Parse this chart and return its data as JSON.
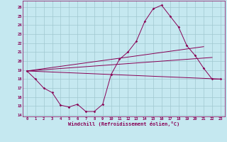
{
  "xlabel": "Windchill (Refroidissement éolien,°C)",
  "xlim": [
    -0.5,
    23.5
  ],
  "ylim": [
    13.85,
    26.7
  ],
  "yticks": [
    14,
    15,
    16,
    17,
    18,
    19,
    20,
    21,
    22,
    23,
    24,
    25,
    26
  ],
  "xticks": [
    0,
    1,
    2,
    3,
    4,
    5,
    6,
    7,
    8,
    9,
    10,
    11,
    12,
    13,
    14,
    15,
    16,
    17,
    18,
    19,
    20,
    21,
    22,
    23
  ],
  "bg_color": "#c5e8f0",
  "grid_color": "#a0c8d0",
  "line_color": "#880055",
  "curve_x": [
    0,
    1,
    2,
    3,
    4,
    5,
    6,
    7,
    8,
    9,
    10,
    11,
    12,
    13,
    14,
    15,
    16,
    17,
    18,
    19,
    20,
    21,
    22,
    23
  ],
  "curve_y": [
    18.9,
    18.0,
    17.0,
    16.5,
    15.1,
    14.9,
    15.2,
    14.4,
    14.4,
    15.2,
    18.5,
    20.2,
    21.0,
    22.2,
    24.4,
    25.8,
    26.2,
    25.0,
    23.8,
    21.7,
    20.6,
    19.2,
    18.0,
    18.0
  ],
  "line1_x": [
    0,
    23
  ],
  "line1_y": [
    18.9,
    18.0
  ],
  "line2_x": [
    0,
    21
  ],
  "line2_y": [
    18.9,
    21.6
  ],
  "line3_x": [
    0,
    22
  ],
  "line3_y": [
    18.9,
    20.4
  ]
}
